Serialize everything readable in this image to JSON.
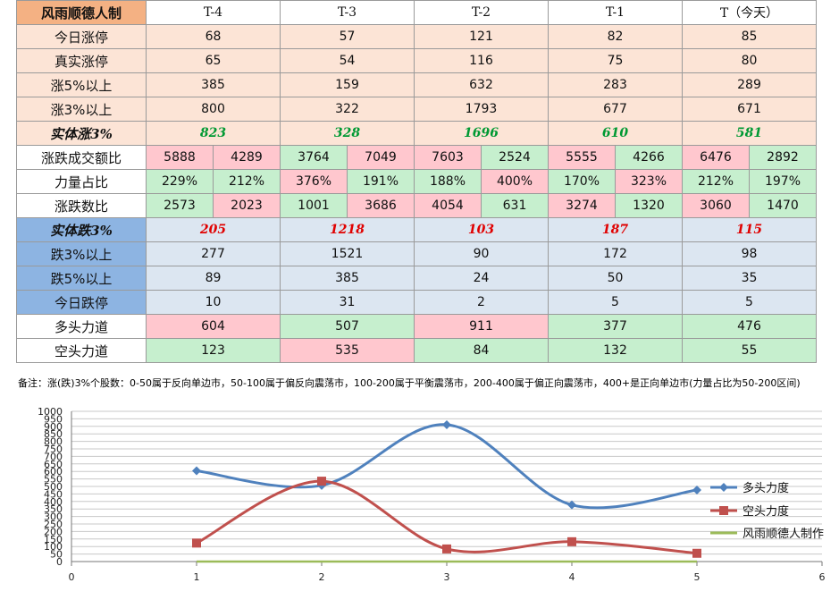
{
  "table": {
    "brand": "风雨顺德人制",
    "columns": [
      "T-4",
      "T-3",
      "T-2",
      "T-1",
      "T（今天）"
    ],
    "up_rows": [
      {
        "label": "今日涨停",
        "values": [
          "68",
          "57",
          "121",
          "82",
          "85"
        ]
      },
      {
        "label": "真实涨停",
        "values": [
          "65",
          "54",
          "116",
          "75",
          "80"
        ]
      },
      {
        "label": "涨5%以上",
        "values": [
          "385",
          "159",
          "632",
          "283",
          "289"
        ]
      },
      {
        "label": "涨3%以上",
        "values": [
          "800",
          "322",
          "1793",
          "677",
          "671"
        ]
      }
    ],
    "up_body": {
      "label": "实体涨3%",
      "values": [
        "823",
        "328",
        "1696",
        "610",
        "581"
      ]
    },
    "pair_rows": [
      {
        "label": "涨跌成交额比",
        "cells": [
          [
            "5888",
            "4289"
          ],
          [
            "3764",
            "7049"
          ],
          [
            "7603",
            "2524"
          ],
          [
            "5555",
            "4266"
          ],
          [
            "6476",
            "2892"
          ]
        ]
      },
      {
        "label": "力量占比",
        "cells": [
          [
            "229%",
            "212%"
          ],
          [
            "376%",
            "191%"
          ],
          [
            "188%",
            "400%"
          ],
          [
            "170%",
            "323%"
          ],
          [
            "212%",
            "197%"
          ]
        ]
      },
      {
        "label": "涨跌数比",
        "cells": [
          [
            "2573",
            "2023"
          ],
          [
            "1001",
            "3686"
          ],
          [
            "4054",
            "631"
          ],
          [
            "3274",
            "1320"
          ],
          [
            "3060",
            "1470"
          ]
        ]
      }
    ],
    "pair_colors": [
      [
        "rd",
        "rd",
        "gr",
        "rd",
        "rd",
        "gr",
        "rd",
        "gr",
        "rd",
        "gr"
      ],
      [
        "gr",
        "gr",
        "rd",
        "gr",
        "gr",
        "rd",
        "gr",
        "rd",
        "gr",
        "gr"
      ],
      [
        "gr",
        "rd",
        "gr",
        "rd",
        "rd",
        "gr",
        "rd",
        "gr",
        "rd",
        "gr"
      ]
    ],
    "down_body": {
      "label": "实体跌3%",
      "values": [
        "205",
        "1218",
        "103",
        "187",
        "115"
      ]
    },
    "down_rows": [
      {
        "label": "跌3%以上",
        "values": [
          "277",
          "1521",
          "90",
          "172",
          "98"
        ]
      },
      {
        "label": "跌5%以上",
        "values": [
          "89",
          "385",
          "24",
          "50",
          "35"
        ]
      },
      {
        "label": "今日跌停",
        "values": [
          "10",
          "31",
          "2",
          "5",
          "5"
        ]
      }
    ],
    "force_rows": [
      {
        "label": "多头力道",
        "values": [
          "604",
          "507",
          "911",
          "377",
          "476"
        ],
        "colors": [
          "rd",
          "gr",
          "rd",
          "gr",
          "gr"
        ]
      },
      {
        "label": "空头力道",
        "values": [
          "123",
          "535",
          "84",
          "132",
          "55"
        ],
        "colors": [
          "gr",
          "rd",
          "gr",
          "gr",
          "gr"
        ]
      }
    ]
  },
  "note": "备注：涨(跌)3%个股数：0-50属于反向单边市，50-100属于偏反向震荡市，100-200属于平衡震荡市，200-400属于偏正向震荡市，400+是正向单边市(力量占比为50-200区间)",
  "colors": {
    "bull": "#4f81bd",
    "bear": "#c0504d",
    "brand": "#9bbb59"
  },
  "chart_data": {
    "type": "line",
    "x": [
      1,
      2,
      3,
      4,
      5
    ],
    "series": [
      {
        "name": "多头力度",
        "values": [
          604,
          507,
          911,
          377,
          476
        ]
      },
      {
        "name": "空头力度",
        "values": [
          123,
          535,
          84,
          132,
          55
        ]
      },
      {
        "name": "风雨顺德人制作",
        "values": [
          0,
          0,
          0,
          0,
          0
        ]
      }
    ],
    "xlim": [
      0,
      6
    ],
    "ylim": [
      0,
      1000
    ],
    "ystep": 50,
    "xticks": [
      0,
      1,
      2,
      3,
      4,
      5,
      6
    ],
    "grid": "horizontal",
    "legend": "right"
  }
}
